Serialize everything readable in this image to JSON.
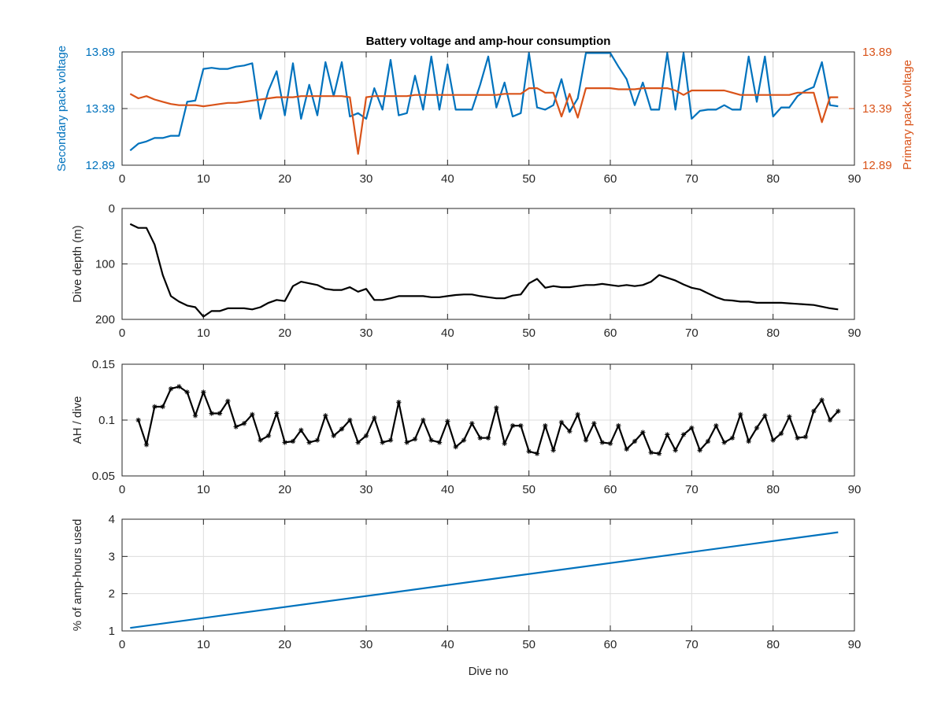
{
  "figure": {
    "title": "Battery voltage and amp-hour consumption"
  },
  "chart_data": [
    {
      "type": "line",
      "title": "Battery voltage and amp-hour consumption",
      "xlabel": "",
      "xlim": [
        0,
        90
      ],
      "xticks": [
        0,
        10,
        20,
        30,
        40,
        50,
        60,
        70,
        80,
        90
      ],
      "ylim": [
        12.89,
        13.89
      ],
      "yticks": [
        12.89,
        13.39,
        13.89
      ],
      "ylabel": "Secondary pack voltage",
      "y2lim": [
        12.89,
        13.89
      ],
      "y2ticks": [
        12.89,
        13.39,
        13.89
      ],
      "y2label": "Primary pack voltage",
      "grid": true,
      "colors": {
        "left": "#0072bd",
        "right": "#d95319"
      },
      "series": [
        {
          "axis": "left",
          "color": "#0072bd",
          "x": [
            1,
            2,
            3,
            4,
            5,
            6,
            7,
            8,
            9,
            10,
            11,
            12,
            13,
            14,
            15,
            16,
            17,
            18,
            19,
            20,
            21,
            22,
            23,
            24,
            25,
            26,
            27,
            28,
            29,
            30,
            31,
            32,
            33,
            34,
            35,
            36,
            37,
            38,
            39,
            40,
            41,
            42,
            43,
            44,
            45,
            46,
            47,
            48,
            49,
            50,
            51,
            52,
            53,
            54,
            55,
            56,
            57,
            58,
            59,
            60,
            61,
            62,
            63,
            64,
            65,
            66,
            67,
            68,
            69,
            70,
            71,
            72,
            73,
            74,
            75,
            76,
            77,
            78,
            79,
            80,
            81,
            82,
            83,
            84,
            85,
            86,
            87,
            88
          ],
          "values": [
            13.02,
            13.08,
            13.1,
            13.13,
            13.13,
            13.15,
            13.15,
            13.45,
            13.46,
            13.74,
            13.75,
            13.74,
            13.74,
            13.76,
            13.77,
            13.79,
            13.3,
            13.55,
            13.72,
            13.33,
            13.79,
            13.3,
            13.6,
            13.33,
            13.8,
            13.5,
            13.8,
            13.32,
            13.35,
            13.3,
            13.57,
            13.38,
            13.82,
            13.33,
            13.35,
            13.68,
            13.38,
            13.85,
            13.38,
            13.78,
            13.38,
            13.38,
            13.38,
            13.6,
            13.85,
            13.4,
            13.62,
            13.32,
            13.35,
            13.88,
            13.4,
            13.38,
            13.42,
            13.65,
            13.36,
            13.48,
            13.88,
            13.88,
            13.88,
            13.88,
            13.76,
            13.65,
            13.42,
            13.62,
            13.38,
            13.38,
            13.88,
            13.38,
            13.88,
            13.3,
            13.37,
            13.38,
            13.38,
            13.42,
            13.38,
            13.38,
            13.85,
            13.45,
            13.85,
            13.32,
            13.4,
            13.4,
            13.5,
            13.55,
            13.58,
            13.8,
            13.42,
            13.41
          ]
        },
        {
          "axis": "right",
          "color": "#d95319",
          "x": [
            1,
            2,
            3,
            4,
            5,
            6,
            7,
            8,
            9,
            10,
            11,
            12,
            13,
            14,
            15,
            16,
            17,
            18,
            19,
            20,
            21,
            22,
            23,
            24,
            25,
            26,
            27,
            28,
            29,
            30,
            31,
            32,
            33,
            34,
            35,
            36,
            37,
            38,
            39,
            40,
            41,
            42,
            43,
            44,
            45,
            46,
            47,
            48,
            49,
            50,
            51,
            52,
            53,
            54,
            55,
            56,
            57,
            58,
            59,
            60,
            61,
            62,
            63,
            64,
            65,
            66,
            67,
            68,
            69,
            70,
            71,
            72,
            73,
            74,
            75,
            76,
            77,
            78,
            79,
            80,
            81,
            82,
            83,
            84,
            85,
            86,
            87,
            88
          ],
          "values": [
            13.52,
            13.48,
            13.5,
            13.47,
            13.45,
            13.43,
            13.42,
            13.42,
            13.42,
            13.41,
            13.42,
            13.43,
            13.44,
            13.44,
            13.45,
            13.46,
            13.47,
            13.48,
            13.49,
            13.49,
            13.49,
            13.5,
            13.5,
            13.5,
            13.5,
            13.5,
            13.5,
            13.49,
            12.99,
            13.49,
            13.5,
            13.5,
            13.5,
            13.5,
            13.5,
            13.51,
            13.51,
            13.51,
            13.51,
            13.51,
            13.51,
            13.51,
            13.51,
            13.51,
            13.51,
            13.51,
            13.52,
            13.52,
            13.52,
            13.57,
            13.57,
            13.53,
            13.53,
            13.32,
            13.52,
            13.31,
            13.57,
            13.57,
            13.57,
            13.57,
            13.56,
            13.56,
            13.56,
            13.57,
            13.57,
            13.57,
            13.57,
            13.55,
            13.51,
            13.55,
            13.55,
            13.55,
            13.55,
            13.55,
            13.53,
            13.51,
            13.51,
            13.51,
            13.51,
            13.51,
            13.51,
            13.51,
            13.53,
            13.53,
            13.53,
            13.27,
            13.49,
            13.49
          ]
        }
      ]
    },
    {
      "type": "line",
      "title": "",
      "xlabel": "",
      "xlim": [
        0,
        90
      ],
      "xticks": [
        0,
        10,
        20,
        30,
        40,
        50,
        60,
        70,
        80,
        90
      ],
      "ylim": [
        0,
        200
      ],
      "yticks": [
        0,
        100,
        200
      ],
      "y_reversed": true,
      "ylabel": "Dive depth (m)",
      "grid": true,
      "series": [
        {
          "color": "#000000",
          "x": [
            1,
            2,
            3,
            4,
            5,
            6,
            7,
            8,
            9,
            10,
            11,
            12,
            13,
            14,
            15,
            16,
            17,
            18,
            19,
            20,
            21,
            22,
            23,
            24,
            25,
            26,
            27,
            28,
            29,
            30,
            31,
            32,
            33,
            34,
            35,
            36,
            37,
            38,
            39,
            40,
            41,
            42,
            43,
            44,
            45,
            46,
            47,
            48,
            49,
            50,
            51,
            52,
            53,
            54,
            55,
            56,
            57,
            58,
            59,
            60,
            61,
            62,
            63,
            64,
            65,
            66,
            67,
            68,
            69,
            70,
            71,
            72,
            73,
            74,
            75,
            76,
            77,
            78,
            79,
            80,
            81,
            82,
            83,
            84,
            85,
            86,
            87,
            88
          ],
          "values": [
            28,
            35,
            35,
            65,
            120,
            158,
            168,
            175,
            178,
            195,
            185,
            185,
            180,
            180,
            180,
            182,
            178,
            170,
            165,
            167,
            140,
            132,
            135,
            138,
            145,
            147,
            147,
            142,
            150,
            145,
            165,
            165,
            162,
            158,
            158,
            158,
            158,
            160,
            160,
            158,
            156,
            155,
            155,
            158,
            160,
            162,
            162,
            157,
            155,
            135,
            127,
            143,
            140,
            142,
            142,
            140,
            138,
            138,
            136,
            138,
            140,
            138,
            140,
            138,
            132,
            120,
            125,
            130,
            137,
            143,
            146,
            153,
            160,
            165,
            166,
            168,
            168,
            170,
            170,
            170,
            170,
            171,
            172,
            173,
            174,
            177,
            180,
            182
          ]
        }
      ]
    },
    {
      "type": "line",
      "title": "",
      "xlabel": "",
      "xlim": [
        0,
        90
      ],
      "xticks": [
        0,
        10,
        20,
        30,
        40,
        50,
        60,
        70,
        80,
        90
      ],
      "ylim": [
        0.05,
        0.15
      ],
      "yticks": [
        0.05,
        0.1,
        0.15
      ],
      "ylabel": "AH / dive",
      "grid": true,
      "marker": "asterisk",
      "series": [
        {
          "color": "#000000",
          "x": [
            2,
            3,
            4,
            5,
            6,
            7,
            8,
            9,
            10,
            11,
            12,
            13,
            14,
            15,
            16,
            17,
            18,
            19,
            20,
            21,
            22,
            23,
            24,
            25,
            26,
            27,
            28,
            29,
            30,
            31,
            32,
            33,
            34,
            35,
            36,
            37,
            38,
            39,
            40,
            41,
            42,
            43,
            44,
            45,
            46,
            47,
            48,
            49,
            50,
            51,
            52,
            53,
            54,
            55,
            56,
            57,
            58,
            59,
            60,
            61,
            62,
            63,
            64,
            65,
            66,
            67,
            68,
            69,
            70,
            71,
            72,
            73,
            74,
            75,
            76,
            77,
            78,
            79,
            80,
            81,
            82,
            83,
            84,
            85,
            86,
            87,
            88
          ],
          "values": [
            0.1,
            0.078,
            0.112,
            0.112,
            0.128,
            0.13,
            0.125,
            0.104,
            0.125,
            0.106,
            0.106,
            0.117,
            0.094,
            0.097,
            0.105,
            0.082,
            0.086,
            0.106,
            0.08,
            0.081,
            0.091,
            0.08,
            0.082,
            0.104,
            0.086,
            0.092,
            0.1,
            0.08,
            0.086,
            0.102,
            0.08,
            0.082,
            0.116,
            0.08,
            0.083,
            0.1,
            0.082,
            0.08,
            0.099,
            0.076,
            0.082,
            0.097,
            0.084,
            0.084,
            0.111,
            0.079,
            0.095,
            0.095,
            0.072,
            0.07,
            0.095,
            0.073,
            0.098,
            0.09,
            0.105,
            0.082,
            0.097,
            0.08,
            0.079,
            0.095,
            0.074,
            0.081,
            0.089,
            0.071,
            0.07,
            0.087,
            0.073,
            0.087,
            0.093,
            0.073,
            0.081,
            0.095,
            0.08,
            0.084,
            0.105,
            0.081,
            0.093,
            0.104,
            0.082,
            0.088,
            0.103,
            0.084,
            0.085,
            0.108,
            0.118,
            0.1,
            0.108
          ]
        }
      ]
    },
    {
      "type": "line",
      "title": "",
      "xlabel": "Dive no",
      "xlim": [
        0,
        90
      ],
      "xticks": [
        0,
        10,
        20,
        30,
        40,
        50,
        60,
        70,
        80,
        90
      ],
      "ylim": [
        1,
        4
      ],
      "yticks": [
        1,
        2,
        3,
        4
      ],
      "ylabel": "% of amp-hours used",
      "grid": true,
      "series": [
        {
          "color": "#0072bd",
          "x": [
            1,
            88
          ],
          "values": [
            1.08,
            3.65
          ]
        }
      ]
    }
  ]
}
